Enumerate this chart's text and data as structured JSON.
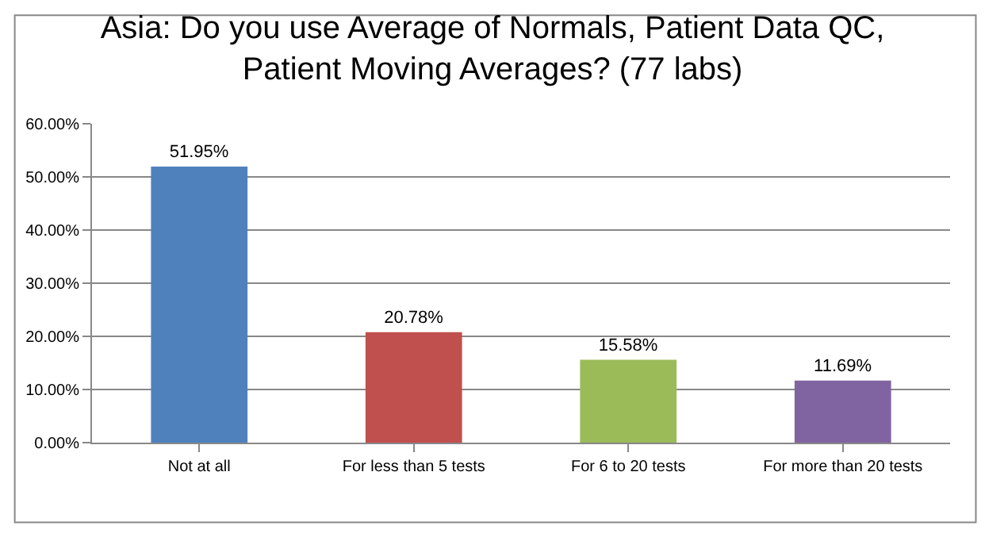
{
  "chart_data": {
    "type": "bar",
    "title": "Asia: Do you use Average of Normals, Patient Data QC, Patient Moving Averages? (77 labs)",
    "categories": [
      "Not at all",
      "For less than 5 tests",
      "For 6 to 20 tests",
      "For more than 20 tests"
    ],
    "values": [
      51.95,
      20.78,
      15.58,
      11.69
    ],
    "colors": [
      "#4f81bd",
      "#c0504d",
      "#9bbb59",
      "#8064a2"
    ],
    "value_labels": [
      "51.95%",
      "20.78%",
      "15.58%",
      "11.69%"
    ],
    "ylim": [
      0,
      60
    ],
    "yticks": [
      {
        "value": 0,
        "label": "0.00%"
      },
      {
        "value": 10,
        "label": "10.00%"
      },
      {
        "value": 20,
        "label": "20.00%"
      },
      {
        "value": 30,
        "label": "30.00%"
      },
      {
        "value": 40,
        "label": "40.00%"
      },
      {
        "value": 50,
        "label": "50.00%"
      },
      {
        "value": 60,
        "label": "60.00%"
      }
    ],
    "grid": "y"
  }
}
